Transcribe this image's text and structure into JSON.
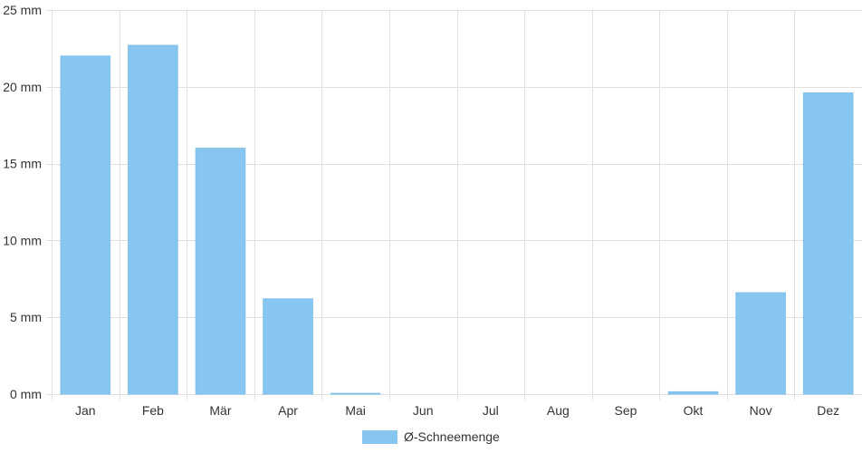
{
  "chart_data": {
    "type": "bar",
    "categories": [
      "Jan",
      "Feb",
      "Mär",
      "Apr",
      "Mai",
      "Jun",
      "Jul",
      "Aug",
      "Sep",
      "Okt",
      "Nov",
      "Dez"
    ],
    "series": [
      {
        "name": "Ø-Schneemenge",
        "values": [
          22.0,
          22.7,
          16.0,
          6.2,
          0.05,
          0,
          0,
          0,
          0,
          0.15,
          6.6,
          19.6
        ],
        "color": "#87c6f1"
      }
    ],
    "ylim": [
      0,
      25
    ],
    "yticks": [
      0,
      5,
      10,
      15,
      20,
      25
    ],
    "y_unit": "mm",
    "grid": true,
    "legend_position": "bottom",
    "gridline_color": "#e0e0e0"
  }
}
